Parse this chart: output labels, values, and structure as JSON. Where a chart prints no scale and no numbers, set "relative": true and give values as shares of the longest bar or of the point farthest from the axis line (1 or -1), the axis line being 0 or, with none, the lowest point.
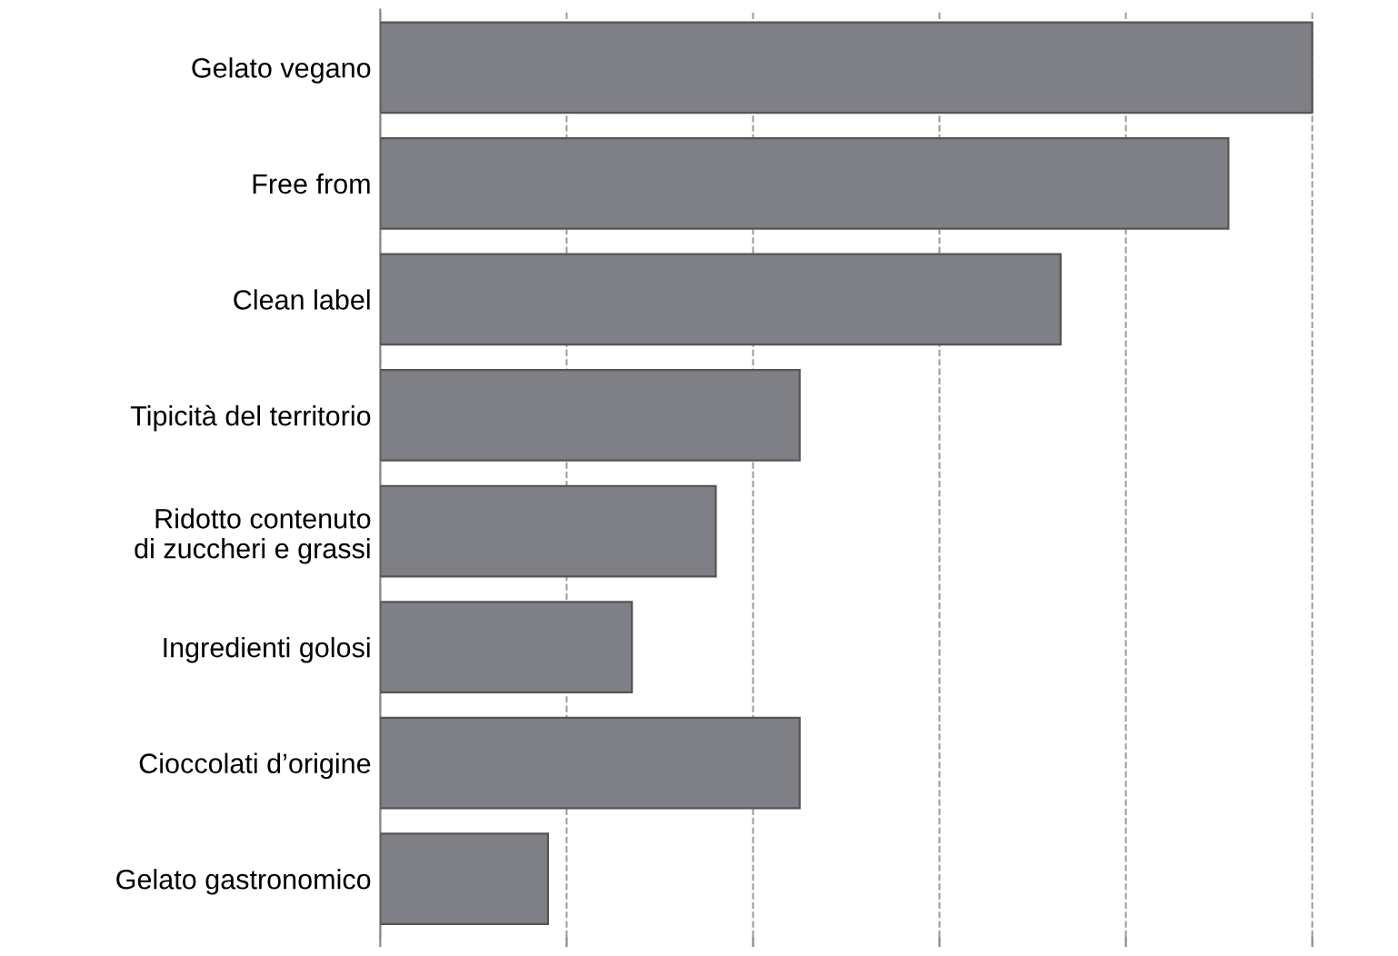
{
  "chart_data": {
    "type": "bar",
    "orientation": "horizontal",
    "relative": true,
    "categories": [
      "Gelato vegano",
      "Free from",
      "Clean label",
      "Tipicità del territorio",
      "Ridotto contenuto\ndi zuccheri e grassi",
      "Ingredienti golosi",
      "Cioccolati d’origine",
      "Gelato gastronomico"
    ],
    "values": [
      1,
      0.91,
      0.73,
      0.45,
      0.36,
      0.27,
      0.45,
      0.18
    ],
    "color": "#7f7f86",
    "grid": "x",
    "line_style": "dashed"
  }
}
